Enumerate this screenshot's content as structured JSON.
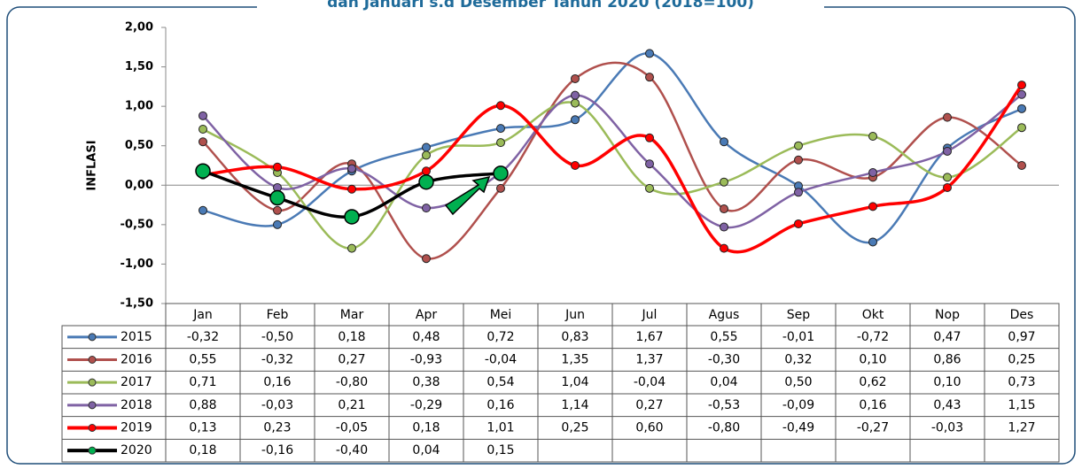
{
  "chart_data": {
    "type": "line",
    "title": "dan Januari s.d Desember Tahun 2020 (2018=100)",
    "y_label": "INFLASI",
    "categories": [
      "Jan",
      "Feb",
      "Mar",
      "Apr",
      "Mei",
      "Jun",
      "Jul",
      "Agus",
      "Sep",
      "Okt",
      "Nop",
      "Des"
    ],
    "ylim": [
      -1.5,
      2
    ],
    "yticks": [
      {
        "value": 2,
        "label": "2,00"
      },
      {
        "value": 1.5,
        "label": "1,50"
      },
      {
        "value": 1,
        "label": "1,00"
      },
      {
        "value": 0.5,
        "label": "0,50"
      },
      {
        "value": 0,
        "label": "0,00"
      },
      {
        "value": -0.5,
        "label": "-0,50"
      },
      {
        "value": -1,
        "label": "-1,00"
      },
      {
        "value": -1.5,
        "label": "-1,50"
      }
    ],
    "series": [
      {
        "name": "2015",
        "color": "#4a7ab5",
        "values": [
          -0.32,
          -0.5,
          0.18,
          0.48,
          0.72,
          0.83,
          1.67,
          0.55,
          -0.01,
          -0.72,
          0.47,
          0.97
        ],
        "value_labels": [
          "-0,32",
          "-0,50",
          "0,18",
          "0,48",
          "0,72",
          "0,83",
          "1,67",
          "0,55",
          "-0,01",
          "-0,72",
          "0,47",
          "0,97"
        ]
      },
      {
        "name": "2016",
        "color": "#b0504d",
        "values": [
          0.55,
          -0.32,
          0.27,
          -0.93,
          -0.04,
          1.35,
          1.37,
          -0.3,
          0.32,
          0.1,
          0.86,
          0.25
        ],
        "value_labels": [
          "0,55",
          "-0,32",
          "0,27",
          "-0,93",
          "-0,04",
          "1,35",
          "1,37",
          "-0,30",
          "0,32",
          "0,10",
          "0,86",
          "0,25"
        ]
      },
      {
        "name": "2017",
        "color": "#9bbb59",
        "values": [
          0.71,
          0.16,
          -0.8,
          0.38,
          0.54,
          1.04,
          -0.04,
          0.04,
          0.5,
          0.62,
          0.1,
          0.73
        ],
        "value_labels": [
          "0,71",
          "0,16",
          "-0,80",
          "0,38",
          "0,54",
          "1,04",
          "-0,04",
          "0,04",
          "0,50",
          "0,62",
          "0,10",
          "0,73"
        ]
      },
      {
        "name": "2018",
        "color": "#7f62a4",
        "values": [
          0.88,
          -0.03,
          0.21,
          -0.29,
          0.16,
          1.14,
          0.27,
          -0.53,
          -0.09,
          0.16,
          0.43,
          1.15
        ],
        "value_labels": [
          "0,88",
          "-0,03",
          "0,21",
          "-0,29",
          "0,16",
          "1,14",
          "0,27",
          "-0,53",
          "-0,09",
          "0,16",
          "0,43",
          "1,15"
        ]
      },
      {
        "name": "2019",
        "color": "#ff0000",
        "values": [
          0.13,
          0.23,
          -0.05,
          0.18,
          1.01,
          0.25,
          0.6,
          -0.8,
          -0.49,
          -0.27,
          -0.03,
          1.27
        ],
        "value_labels": [
          "0,13",
          "0,23",
          "-0,05",
          "0,18",
          "1,01",
          "0,25",
          "0,60",
          "-0,80",
          "-0,49",
          "-0,27",
          "-0,03",
          "1,27"
        ]
      },
      {
        "name": "2020",
        "color": "#000000",
        "marker_color": "#00b050",
        "values": [
          0.18,
          -0.16,
          -0.4,
          0.04,
          0.15,
          null,
          null,
          null,
          null,
          null,
          null,
          null
        ],
        "value_labels": [
          "0,18",
          "-0,16",
          "-0,40",
          "0,04",
          "0,15",
          null,
          null,
          null,
          null,
          null,
          null,
          null
        ]
      }
    ]
  }
}
